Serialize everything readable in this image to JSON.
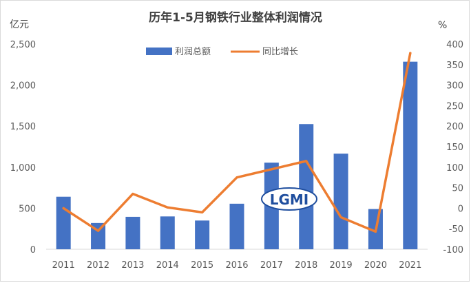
{
  "chart_data": {
    "type": "bar+line",
    "title": "历年1-5月钢铁行业整体利润情况",
    "y_left_unit": "亿元",
    "y_right_unit": "%",
    "categories": [
      "2011",
      "2012",
      "2013",
      "2014",
      "2015",
      "2016",
      "2017",
      "2018",
      "2019",
      "2020",
      "2021"
    ],
    "series": [
      {
        "name": "利润总额",
        "type": "bar",
        "axis": "left",
        "color": "#4472c4",
        "values": [
          640,
          320,
          395,
          400,
          350,
          555,
          1055,
          1525,
          1165,
          490,
          2285
        ]
      },
      {
        "name": "同比增长",
        "type": "line",
        "axis": "right",
        "color": "#ed7d31",
        "values": [
          0,
          -55,
          35,
          2,
          -10,
          75,
          95,
          115,
          -22,
          -57,
          378
        ]
      }
    ],
    "y_left": {
      "min": 0,
      "max": 2500,
      "ticks": [
        0,
        500,
        1000,
        1500,
        2000,
        2500
      ],
      "tick_labels": [
        "0",
        "500",
        "1,000",
        "1,500",
        "2,000",
        "2,500"
      ]
    },
    "y_right": {
      "min": -100,
      "max": 400,
      "ticks": [
        -100,
        -50,
        0,
        50,
        100,
        150,
        200,
        250,
        300,
        350,
        400
      ],
      "tick_labels": [
        "-100",
        "-50",
        "0",
        "50",
        "100",
        "150",
        "200",
        "250",
        "300",
        "350",
        "400"
      ]
    },
    "legend_position": "top-center",
    "grid": false
  },
  "watermark": "LGMI"
}
